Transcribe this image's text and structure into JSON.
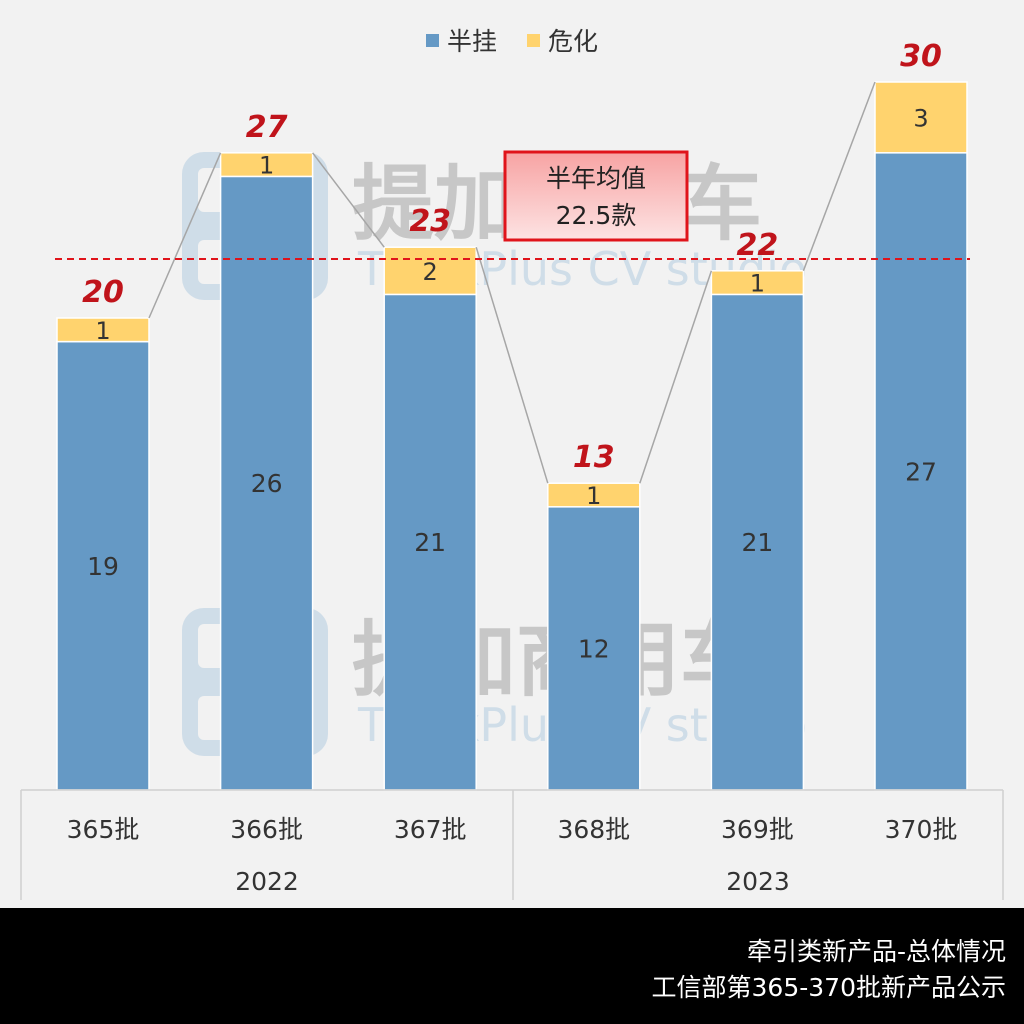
{
  "chart_data": {
    "type": "bar",
    "stacked": true,
    "categories": [
      "365批",
      "366批",
      "367批",
      "368批",
      "369批",
      "370批"
    ],
    "groups": [
      {
        "label": "2022",
        "categories": [
          "365批",
          "366批",
          "367批"
        ]
      },
      {
        "label": "2023",
        "categories": [
          "368批",
          "369批",
          "370批"
        ]
      }
    ],
    "series": [
      {
        "name": "半挂",
        "color": "#6599c5",
        "values": [
          19,
          26,
          21,
          12,
          21,
          27
        ]
      },
      {
        "name": "危化",
        "color": "#ffd36e",
        "values": [
          1,
          1,
          2,
          1,
          1,
          3
        ]
      }
    ],
    "totals": [
      20,
      27,
      23,
      13,
      22,
      30
    ],
    "ylim": [
      0,
      30
    ],
    "average": {
      "value": 22.5,
      "label_line1": "半年均值",
      "label_line2": "22.5款",
      "color": "#e0141b"
    },
    "legend_position": "top-center",
    "grid": false
  },
  "watermark": {
    "title": "提加商用车",
    "subtitle": "TruckPlus CV studio"
  },
  "footer": {
    "line1": "牵引类新产品-总体情况",
    "line2": "工信部第365-370批新产品公示"
  }
}
